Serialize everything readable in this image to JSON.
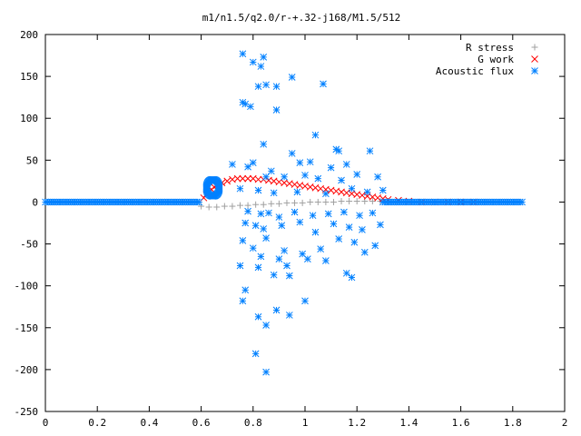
{
  "chart_data": {
    "type": "scatter",
    "title": "m1/n1.5/q2.0/r-+.32-j168/M1.5/512",
    "xlabel": "",
    "ylabel": "",
    "xlim": [
      0,
      2
    ],
    "ylim": [
      -250,
      200
    ],
    "x_ticks": [
      0,
      0.2,
      0.4,
      0.6,
      0.8,
      1,
      1.2,
      1.4,
      1.6,
      1.8,
      2
    ],
    "x_tick_labels": [
      "0",
      "0.2",
      "0.4",
      "0.6",
      "0.8",
      "1",
      "1.2",
      "1.4",
      "1.6",
      "1.8",
      "2"
    ],
    "y_ticks": [
      -250,
      -200,
      -150,
      -100,
      -50,
      0,
      50,
      100,
      150,
      200
    ],
    "y_tick_labels": [
      "-250",
      "-200",
      "-150",
      "-100",
      "-50",
      "0",
      "50",
      "100",
      "150",
      "200"
    ],
    "grid": false,
    "legend_position": "top-right",
    "series": [
      {
        "name": "R stress",
        "marker": "+",
        "color": "#a0a0a0",
        "x": [
          0.6,
          0.63,
          0.66,
          0.69,
          0.72,
          0.75,
          0.78,
          0.81,
          0.84,
          0.87,
          0.9,
          0.93,
          0.96,
          0.99,
          1.02,
          1.05,
          1.08,
          1.11,
          1.14,
          1.17,
          1.2,
          1.23,
          1.26,
          1.29,
          1.32,
          1.35
        ],
        "y": [
          -5,
          -6,
          -6,
          -5,
          -5,
          -4,
          -4,
          -3,
          -3,
          -2,
          -2,
          -1,
          -1,
          -1,
          0,
          0,
          0,
          0,
          1,
          1,
          1,
          1,
          1,
          1,
          1,
          0
        ]
      },
      {
        "name": "G work",
        "marker": "x",
        "color": "#ff0000",
        "x": [
          0.61,
          0.62,
          0.63,
          0.64,
          0.65,
          0.66,
          0.68,
          0.7,
          0.72,
          0.74,
          0.76,
          0.78,
          0.8,
          0.82,
          0.84,
          0.86,
          0.88,
          0.9,
          0.92,
          0.94,
          0.96,
          0.98,
          1.0,
          1.02,
          1.04,
          1.06,
          1.08,
          1.1,
          1.12,
          1.14,
          1.16,
          1.18,
          1.2,
          1.22,
          1.24,
          1.26,
          1.28,
          1.3,
          1.32,
          1.36,
          1.4,
          1.45,
          1.5,
          1.55,
          1.6,
          1.65
        ],
        "y": [
          5,
          9,
          12,
          15,
          18,
          20,
          23,
          25,
          27,
          28,
          28,
          28,
          28,
          27,
          27,
          26,
          25,
          24,
          23,
          22,
          21,
          20,
          19,
          18,
          17,
          16,
          15,
          14,
          13,
          12,
          11,
          10,
          9,
          8,
          7,
          6,
          5,
          4,
          3,
          2,
          1,
          0,
          0,
          0,
          0,
          0
        ]
      },
      {
        "name": "Acoustic flux",
        "marker": "*",
        "color": "#0080ff",
        "x": [
          0.76,
          0.77,
          0.8,
          0.83,
          0.84,
          0.85,
          0.89,
          0.95,
          1.07,
          0.76,
          0.79,
          0.82,
          0.89,
          0.84,
          1.04,
          1.12,
          1.13,
          1.25,
          0.72,
          0.8,
          0.87,
          0.95,
          0.98,
          1.02,
          1.1,
          1.16,
          0.78,
          0.85,
          0.92,
          1.0,
          1.05,
          1.14,
          1.2,
          1.28,
          0.75,
          0.82,
          0.88,
          0.97,
          1.08,
          1.18,
          1.24,
          1.3,
          0.78,
          0.83,
          0.86,
          0.9,
          0.96,
          1.03,
          1.09,
          1.15,
          1.21,
          1.26,
          0.77,
          0.81,
          0.84,
          0.91,
          0.98,
          1.04,
          1.11,
          1.17,
          1.22,
          1.29,
          0.76,
          0.8,
          0.85,
          0.92,
          0.99,
          1.06,
          1.13,
          1.19,
          1.27,
          0.83,
          0.9,
          0.94,
          1.01,
          1.08,
          1.16,
          1.23,
          0.75,
          0.77,
          0.82,
          0.88,
          0.93,
          1.0,
          1.18,
          0.76,
          0.82,
          0.85,
          0.89,
          0.94,
          0.81,
          0.85
        ],
        "y": [
          177,
          117,
          167,
          162,
          173,
          140,
          110,
          149,
          141,
          119,
          114,
          138,
          138,
          69,
          80,
          63,
          61,
          61,
          45,
          47,
          37,
          58,
          47,
          48,
          41,
          45,
          42,
          30,
          30,
          32,
          28,
          26,
          33,
          30,
          16,
          14,
          11,
          12,
          10,
          16,
          12,
          14,
          -11,
          -14,
          -13,
          -18,
          -12,
          -16,
          -14,
          -12,
          -16,
          -13,
          -25,
          -28,
          -32,
          -28,
          -24,
          -36,
          -26,
          -30,
          -33,
          -27,
          -46,
          -55,
          -43,
          -58,
          -62,
          -56,
          -44,
          -48,
          -52,
          -65,
          -68,
          -88,
          -68,
          -70,
          -85,
          -60,
          -76,
          -105,
          -78,
          -87,
          -76,
          -118,
          -90,
          -118,
          -137,
          -147,
          -129,
          -135,
          -181,
          -203
        ]
      }
    ]
  }
}
